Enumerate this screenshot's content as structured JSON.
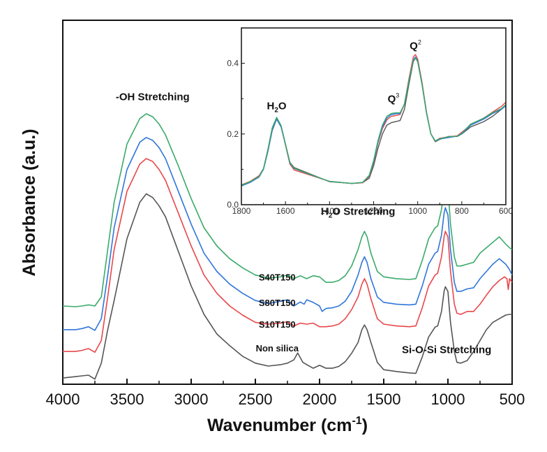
{
  "chart_data": [
    {
      "type": "line",
      "role": "main",
      "title": "",
      "xlabel": "Wavenumber (cm",
      "xlabel_sup": "-1",
      "xlabel_tail": ")",
      "ylabel": "Absorbance (a.u.)",
      "xlim": [
        4000,
        500
      ],
      "ylim": [
        0,
        1
      ],
      "xticks": [
        4000,
        3500,
        3000,
        2500,
        2000,
        1500,
        1000,
        500
      ],
      "x_minor_ticks": [
        3750,
        3250,
        2750,
        2250,
        1750,
        1250,
        750
      ],
      "yticks": [],
      "grid": false,
      "legend": "none",
      "series": [
        {
          "name": "Non silica",
          "color": "#555555",
          "x": [
            4000,
            3900,
            3850,
            3800,
            3750,
            3700,
            3650,
            3600,
            3500,
            3400,
            3350,
            3300,
            3250,
            3200,
            3100,
            3000,
            2900,
            2800,
            2700,
            2600,
            2500,
            2400,
            2300,
            2250,
            2200,
            2170,
            2130,
            2100,
            2050,
            2000,
            1950,
            1900,
            1850,
            1800,
            1750,
            1700,
            1670,
            1650,
            1630,
            1600,
            1550,
            1500,
            1400,
            1300,
            1250,
            1200,
            1150,
            1100,
            1080,
            1050,
            1030,
            1020,
            1000,
            980,
            950,
            930,
            900,
            850,
            800,
            750,
            700,
            650,
            600,
            550,
            520,
            500
          ],
          "y": [
            0.017,
            0.021,
            0.023,
            0.025,
            0.014,
            0.058,
            0.15,
            0.23,
            0.4,
            0.5,
            0.523,
            0.513,
            0.49,
            0.46,
            0.365,
            0.27,
            0.192,
            0.138,
            0.106,
            0.077,
            0.058,
            0.05,
            0.054,
            0.058,
            0.067,
            0.086,
            0.06,
            0.054,
            0.044,
            0.052,
            0.044,
            0.044,
            0.049,
            0.062,
            0.085,
            0.115,
            0.15,
            0.163,
            0.15,
            0.115,
            0.06,
            0.04,
            0.035,
            0.031,
            0.03,
            0.075,
            0.13,
            0.157,
            0.16,
            0.2,
            0.255,
            0.268,
            0.255,
            0.17,
            0.09,
            0.06,
            0.058,
            0.065,
            0.09,
            0.12,
            0.15,
            0.17,
            0.18,
            0.19,
            0.192,
            0.192
          ]
        },
        {
          "name": "S10T150",
          "color": "#e8474a",
          "x": [
            4000,
            3900,
            3850,
            3800,
            3750,
            3700,
            3650,
            3600,
            3500,
            3400,
            3350,
            3300,
            3250,
            3200,
            3100,
            3000,
            2900,
            2800,
            2700,
            2600,
            2500,
            2400,
            2300,
            2250,
            2200,
            2150,
            2100,
            2050,
            2000,
            1950,
            1900,
            1850,
            1800,
            1750,
            1700,
            1670,
            1650,
            1630,
            1600,
            1550,
            1500,
            1400,
            1300,
            1250,
            1200,
            1150,
            1100,
            1080,
            1050,
            1030,
            1020,
            1000,
            980,
            950,
            930,
            900,
            850,
            800,
            750,
            700,
            650,
            600,
            560,
            540,
            530,
            520,
            500
          ],
          "y": [
            0.09,
            0.09,
            0.093,
            0.098,
            0.088,
            0.12,
            0.24,
            0.37,
            0.53,
            0.605,
            0.62,
            0.612,
            0.59,
            0.56,
            0.47,
            0.38,
            0.3,
            0.25,
            0.215,
            0.19,
            0.17,
            0.165,
            0.168,
            0.172,
            0.16,
            0.168,
            0.165,
            0.168,
            0.158,
            0.158,
            0.16,
            0.165,
            0.18,
            0.205,
            0.24,
            0.275,
            0.29,
            0.275,
            0.235,
            0.18,
            0.165,
            0.16,
            0.158,
            0.16,
            0.21,
            0.27,
            0.3,
            0.305,
            0.35,
            0.405,
            0.42,
            0.405,
            0.31,
            0.22,
            0.195,
            0.192,
            0.2,
            0.2,
            0.22,
            0.245,
            0.268,
            0.285,
            0.295,
            0.29,
            0.26,
            0.29,
            0.28
          ]
        },
        {
          "name": "S80T150",
          "color": "#2f76d9",
          "x": [
            4000,
            3900,
            3850,
            3800,
            3750,
            3700,
            3650,
            3600,
            3500,
            3400,
            3350,
            3300,
            3250,
            3200,
            3100,
            3000,
            2900,
            2800,
            2700,
            2600,
            2500,
            2400,
            2300,
            2250,
            2200,
            2150,
            2120,
            2100,
            2050,
            2000,
            1980,
            1950,
            1900,
            1850,
            1800,
            1750,
            1700,
            1670,
            1650,
            1630,
            1600,
            1550,
            1500,
            1400,
            1300,
            1250,
            1200,
            1150,
            1100,
            1080,
            1050,
            1030,
            1020,
            1000,
            980,
            950,
            930,
            900,
            850,
            800,
            750,
            700,
            650,
            600,
            550,
            520,
            500
          ],
          "y": [
            0.15,
            0.15,
            0.153,
            0.158,
            0.148,
            0.18,
            0.3,
            0.43,
            0.59,
            0.665,
            0.678,
            0.67,
            0.65,
            0.62,
            0.53,
            0.44,
            0.36,
            0.31,
            0.275,
            0.25,
            0.23,
            0.222,
            0.228,
            0.232,
            0.215,
            0.226,
            0.22,
            0.232,
            0.225,
            0.215,
            0.2,
            0.208,
            0.21,
            0.215,
            0.228,
            0.255,
            0.3,
            0.335,
            0.35,
            0.335,
            0.29,
            0.24,
            0.225,
            0.22,
            0.218,
            0.22,
            0.27,
            0.33,
            0.36,
            0.365,
            0.41,
            0.47,
            0.485,
            0.465,
            0.37,
            0.28,
            0.255,
            0.255,
            0.262,
            0.265,
            0.29,
            0.31,
            0.33,
            0.345,
            0.33,
            0.315,
            0.3
          ]
        },
        {
          "name": "S40T150",
          "color": "#3aaa6a",
          "x": [
            4000,
            3900,
            3850,
            3800,
            3750,
            3700,
            3650,
            3600,
            3500,
            3400,
            3350,
            3300,
            3250,
            3200,
            3100,
            3000,
            2900,
            2800,
            2700,
            2600,
            2500,
            2400,
            2300,
            2250,
            2200,
            2150,
            2100,
            2050,
            2000,
            1950,
            1900,
            1850,
            1800,
            1750,
            1700,
            1670,
            1650,
            1630,
            1600,
            1550,
            1500,
            1400,
            1300,
            1250,
            1200,
            1150,
            1100,
            1080,
            1050,
            1030,
            1020,
            1000,
            980,
            950,
            930,
            900,
            850,
            800,
            750,
            700,
            650,
            600,
            550,
            520,
            500
          ],
          "y": [
            0.215,
            0.213,
            0.215,
            0.218,
            0.215,
            0.24,
            0.37,
            0.5,
            0.66,
            0.73,
            0.743,
            0.735,
            0.715,
            0.685,
            0.6,
            0.51,
            0.43,
            0.38,
            0.345,
            0.32,
            0.3,
            0.292,
            0.295,
            0.3,
            0.29,
            0.298,
            0.29,
            0.298,
            0.295,
            0.28,
            0.28,
            0.285,
            0.298,
            0.325,
            0.37,
            0.405,
            0.42,
            0.405,
            0.36,
            0.31,
            0.295,
            0.29,
            0.288,
            0.29,
            0.34,
            0.4,
            0.43,
            0.435,
            0.48,
            0.54,
            0.56,
            0.54,
            0.44,
            0.35,
            0.325,
            0.325,
            0.33,
            0.335,
            0.36,
            0.375,
            0.39,
            0.405,
            0.385,
            0.375,
            0.37
          ]
        }
      ],
      "annotations": [
        {
          "text": "-OH Stretching",
          "x": 3300,
          "y": 0.78
        },
        {
          "text_pre": "H",
          "text_sub": "2",
          "text_post": "O Stretching",
          "x": 1700,
          "y": 0.465
        },
        {
          "text": "Si-O-Si Stretching",
          "x": 1010,
          "y": 0.085
        },
        {
          "text": "S40T150",
          "series": "S40T150",
          "x": 2330,
          "y": 0.285
        },
        {
          "text": "S80T150",
          "series": "S80T150",
          "x": 2330,
          "y": 0.215
        },
        {
          "text": "S10T150",
          "series": "S10T150",
          "x": 2330,
          "y": 0.155
        },
        {
          "text": "Non silica",
          "series": "Non silica",
          "x": 2330,
          "y": 0.09
        }
      ]
    },
    {
      "type": "line",
      "role": "inset",
      "title": "",
      "xlabel": "",
      "ylabel": "",
      "xlim": [
        1800,
        600
      ],
      "ylim": [
        0,
        0.5
      ],
      "xticks": [
        1800,
        1600,
        1400,
        1200,
        1000,
        800,
        600
      ],
      "x_minor_ticks": [
        1700,
        1500,
        1300,
        1100,
        900,
        700
      ],
      "yticks": [
        0.0,
        0.2,
        0.4
      ],
      "ytick_labels": [
        "0.0",
        "0.2",
        "0.4"
      ],
      "y_minor_ticks": [
        0.1,
        0.3
      ],
      "grid": false,
      "legend": "none",
      "series": [
        {
          "name": "Non silica",
          "color": "#555555",
          "x": [
            1800,
            1760,
            1720,
            1700,
            1680,
            1660,
            1640,
            1620,
            1600,
            1580,
            1560,
            1500,
            1400,
            1300,
            1250,
            1220,
            1200,
            1180,
            1160,
            1140,
            1120,
            1100,
            1080,
            1060,
            1040,
            1020,
            1010,
            1000,
            980,
            960,
            940,
            920,
            900,
            860,
            820,
            800,
            760,
            700,
            660,
            620,
            600
          ],
          "y": [
            0.056,
            0.065,
            0.08,
            0.1,
            0.15,
            0.21,
            0.242,
            0.22,
            0.17,
            0.12,
            0.105,
            0.09,
            0.065,
            0.06,
            0.062,
            0.075,
            0.11,
            0.16,
            0.2,
            0.225,
            0.232,
            0.235,
            0.238,
            0.27,
            0.34,
            0.405,
            0.415,
            0.405,
            0.34,
            0.26,
            0.2,
            0.178,
            0.185,
            0.193,
            0.193,
            0.2,
            0.22,
            0.235,
            0.25,
            0.27,
            0.282
          ]
        },
        {
          "name": "S10T150",
          "color": "#e8474a",
          "x": [
            1800,
            1760,
            1720,
            1700,
            1680,
            1660,
            1640,
            1620,
            1600,
            1580,
            1560,
            1500,
            1400,
            1300,
            1250,
            1220,
            1200,
            1180,
            1160,
            1140,
            1120,
            1100,
            1080,
            1060,
            1040,
            1020,
            1010,
            1000,
            980,
            960,
            940,
            920,
            900,
            860,
            820,
            800,
            760,
            700,
            660,
            620,
            600
          ],
          "y": [
            0.056,
            0.066,
            0.082,
            0.102,
            0.155,
            0.215,
            0.245,
            0.222,
            0.168,
            0.115,
            0.098,
            0.086,
            0.066,
            0.06,
            0.062,
            0.08,
            0.12,
            0.175,
            0.215,
            0.24,
            0.25,
            0.252,
            0.255,
            0.285,
            0.355,
            0.418,
            0.425,
            0.412,
            0.345,
            0.262,
            0.2,
            0.18,
            0.188,
            0.192,
            0.195,
            0.205,
            0.225,
            0.245,
            0.262,
            0.278,
            0.29
          ]
        },
        {
          "name": "S80T150",
          "color": "#2f76d9",
          "x": [
            1800,
            1760,
            1720,
            1700,
            1680,
            1660,
            1640,
            1620,
            1600,
            1580,
            1560,
            1500,
            1400,
            1300,
            1250,
            1220,
            1200,
            1180,
            1160,
            1140,
            1120,
            1100,
            1080,
            1060,
            1040,
            1020,
            1010,
            1000,
            980,
            960,
            940,
            920,
            900,
            860,
            820,
            800,
            760,
            700,
            660,
            620,
            600
          ],
          "y": [
            0.053,
            0.063,
            0.078,
            0.1,
            0.152,
            0.212,
            0.243,
            0.22,
            0.17,
            0.118,
            0.102,
            0.088,
            0.066,
            0.06,
            0.063,
            0.082,
            0.122,
            0.178,
            0.22,
            0.245,
            0.255,
            0.257,
            0.258,
            0.285,
            0.35,
            0.41,
            0.418,
            0.406,
            0.34,
            0.26,
            0.2,
            0.18,
            0.186,
            0.19,
            0.194,
            0.2,
            0.225,
            0.242,
            0.258,
            0.27,
            0.28
          ]
        },
        {
          "name": "S40T150",
          "color": "#3aaa6a",
          "x": [
            1800,
            1760,
            1720,
            1700,
            1680,
            1660,
            1640,
            1620,
            1600,
            1580,
            1560,
            1500,
            1400,
            1300,
            1250,
            1220,
            1200,
            1180,
            1160,
            1140,
            1120,
            1100,
            1080,
            1060,
            1040,
            1020,
            1010,
            1000,
            980,
            960,
            940,
            920,
            900,
            860,
            820,
            800,
            760,
            700,
            660,
            620,
            600
          ],
          "y": [
            0.055,
            0.065,
            0.08,
            0.102,
            0.156,
            0.218,
            0.247,
            0.224,
            0.172,
            0.12,
            0.103,
            0.088,
            0.066,
            0.06,
            0.063,
            0.083,
            0.125,
            0.182,
            0.225,
            0.25,
            0.258,
            0.26,
            0.26,
            0.285,
            0.348,
            0.408,
            0.415,
            0.404,
            0.338,
            0.258,
            0.2,
            0.18,
            0.187,
            0.192,
            0.194,
            0.202,
            0.228,
            0.245,
            0.26,
            0.272,
            0.283
          ]
        }
      ],
      "annotations": [
        {
          "text_pre": "H",
          "text_sub": "2",
          "text_post": "O",
          "x": 1640,
          "y": 0.27
        },
        {
          "text_pre": "Q",
          "text_sup": "3",
          "x": 1110,
          "y": 0.29
        },
        {
          "text_pre": "Q",
          "text_sup": "2",
          "x": 1010,
          "y": 0.44
        }
      ]
    }
  ]
}
